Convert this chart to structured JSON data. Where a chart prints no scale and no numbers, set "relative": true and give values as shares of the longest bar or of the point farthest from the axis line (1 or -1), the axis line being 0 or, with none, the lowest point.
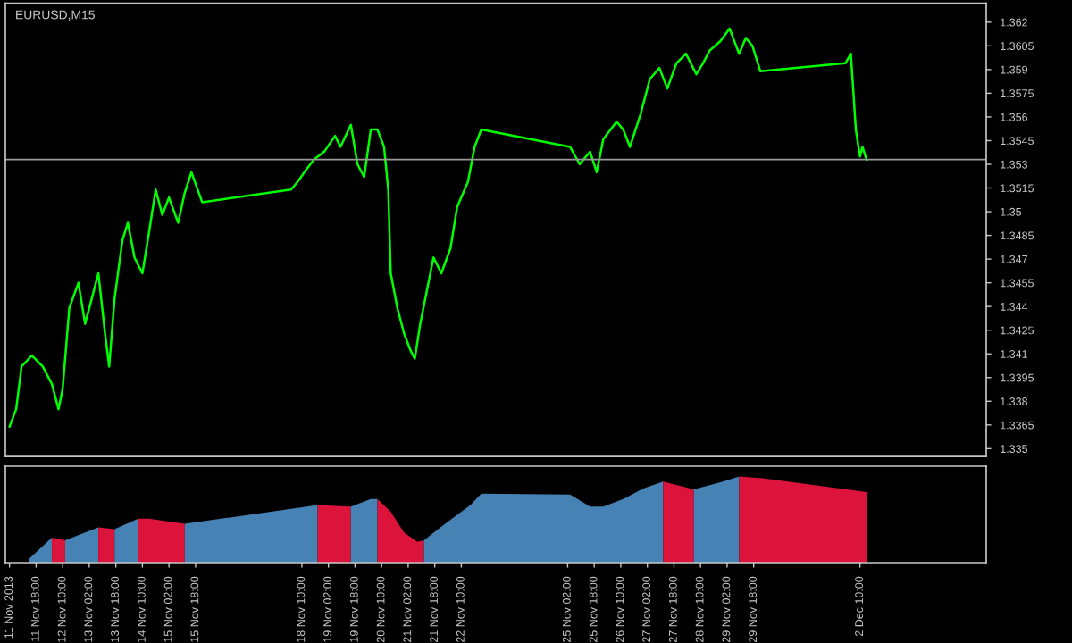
{
  "chart_data": [
    {
      "type": "line",
      "title": "EURUSD,M15",
      "x": [
        "2013-11-11T02:00",
        "2013-11-11T06:00",
        "2013-11-11T09:15",
        "2013-11-11T15:30",
        "2013-11-11T22:00",
        "2013-11-12T03:30",
        "2013-11-12T07:30",
        "2013-11-12T10:00",
        "2013-11-12T14:00",
        "2013-11-12T19:30",
        "2013-11-12T23:30",
        "2013-11-13T03:30",
        "2013-11-13T07:30",
        "2013-11-13T11:30",
        "2013-11-13T14:00",
        "2013-11-13T17:15",
        "2013-11-13T22:00",
        "2013-11-14T01:15",
        "2013-11-14T05:15",
        "2013-11-14T10:00",
        "2013-11-14T14:00",
        "2013-11-14T18:00",
        "2013-11-14T22:00",
        "2013-11-15T02:00",
        "2013-11-15T07:30",
        "2013-11-15T11:30",
        "2013-11-15T15:30",
        "2013-11-15T22:00",
        "2013-11-18T03:30",
        "2013-11-18T07:30",
        "2013-11-18T11:30",
        "2013-11-18T17:15",
        "2013-11-18T23:30",
        "2013-11-19T06:00",
        "2013-11-19T09:15",
        "2013-11-19T15:30",
        "2013-11-19T19:30",
        "2013-11-19T23:30",
        "2013-11-20T03:30",
        "2013-11-20T07:30",
        "2013-11-20T11:30",
        "2013-11-20T14:00",
        "2013-11-20T15:30",
        "2013-11-20T19:30",
        "2013-11-20T23:30",
        "2013-11-21T03:30",
        "2013-11-21T06:00",
        "2013-11-21T09:15",
        "2013-11-21T13:15",
        "2013-11-21T17:15",
        "2013-11-21T22:00",
        "2013-11-22T03:30",
        "2013-11-22T07:30",
        "2013-11-22T14:00",
        "2013-11-22T18:00",
        "2013-11-22T22:00",
        "2013-11-25T03:30",
        "2013-11-25T09:15",
        "2013-11-25T15:30",
        "2013-11-25T19:30",
        "2013-11-25T23:30",
        "2013-11-26T07:30",
        "2013-11-26T11:30",
        "2013-11-26T15:30",
        "2013-11-26T22:00",
        "2013-11-27T03:30",
        "2013-11-27T09:15",
        "2013-11-27T14:00",
        "2013-11-27T19:30",
        "2013-11-28T01:15",
        "2013-11-28T07:30",
        "2013-11-28T11:30",
        "2013-11-28T15:30",
        "2013-11-28T22:00",
        "2013-11-29T03:30",
        "2013-11-29T09:15",
        "2013-11-29T13:15",
        "2013-11-29T17:15",
        "2013-11-29T22:00",
        "2013-12-02T01:15",
        "2013-12-02T04:30",
        "2013-12-02T07:30",
        "2013-12-02T10:00",
        "2013-12-02T11:30",
        "2013-12-02T14:00"
      ],
      "series": [
        {
          "color": "#00ff00",
          "values": [
            1.3364,
            1.3375,
            1.3402,
            1.3409,
            1.3402,
            1.3391,
            1.3375,
            1.3388,
            1.3439,
            1.3455,
            1.3429,
            1.3445,
            1.3461,
            1.3423,
            1.3402,
            1.3445,
            1.3482,
            1.3493,
            1.3471,
            1.3461,
            1.3487,
            1.3514,
            1.3498,
            1.3509,
            1.3493,
            1.3512,
            1.3525,
            1.3506,
            1.3514,
            1.3519,
            1.3525,
            1.3533,
            1.3538,
            1.3548,
            1.3541,
            1.3555,
            1.353,
            1.3522,
            1.3552,
            1.3552,
            1.3541,
            1.3514,
            1.3461,
            1.3439,
            1.3423,
            1.3412,
            1.3407,
            1.3429,
            1.345,
            1.3471,
            1.3461,
            1.3477,
            1.3503,
            1.3519,
            1.3541,
            1.3552,
            1.3541,
            1.353,
            1.3538,
            1.3525,
            1.3546,
            1.3557,
            1.3552,
            1.3541,
            1.3562,
            1.3584,
            1.3591,
            1.3578,
            1.3594,
            1.36,
            1.3587,
            1.3594,
            1.3602,
            1.3608,
            1.3616,
            1.36,
            1.361,
            1.3605,
            1.3589,
            1.3594,
            1.36,
            1.3552,
            1.3535,
            1.3541,
            1.3533
          ]
        }
      ],
      "xlim": [
        "2013-11-10T23:30",
        "2013-12-05T14:00"
      ],
      "ylim": [
        1.3345,
        1.3632
      ],
      "yticks": [
        1.335,
        1.3365,
        1.338,
        1.3395,
        1.341,
        1.3425,
        1.344,
        1.3455,
        1.347,
        1.3485,
        1.35,
        1.3515,
        1.353,
        1.3545,
        1.356,
        1.3575,
        1.359,
        1.3605,
        1.362
      ],
      "ref_lines": [
        {
          "axis": "y",
          "value": 1.3533,
          "color": "#9a9a9a"
        }
      ],
      "tick_labels": "y"
    },
    {
      "type": "area",
      "relative": true,
      "series": [
        {
          "color": "#4682b4",
          "x": [
            "2013-11-11T14:00",
            "2013-11-12T03:30"
          ],
          "values": [
            0.05,
            0.29
          ]
        },
        {
          "color": "#dc143c",
          "x": [
            "2013-11-12T03:30",
            "2013-11-12T11:30"
          ],
          "values": [
            0.29,
            0.26
          ]
        },
        {
          "color": "#4682b4",
          "x": [
            "2013-11-12T11:30",
            "2013-11-13T07:30"
          ],
          "values": [
            0.26,
            0.41
          ]
        },
        {
          "color": "#dc143c",
          "x": [
            "2013-11-13T07:30",
            "2013-11-13T17:15"
          ],
          "values": [
            0.41,
            0.39
          ]
        },
        {
          "color": "#4682b4",
          "x": [
            "2013-11-13T17:15",
            "2013-11-14T07:30"
          ],
          "values": [
            0.39,
            0.51
          ]
        },
        {
          "color": "#dc143c",
          "x": [
            "2013-11-14T07:30",
            "2013-11-14T14:00",
            "2013-11-15T11:30"
          ],
          "values": [
            0.51,
            0.51,
            0.45
          ]
        },
        {
          "color": "#4682b4",
          "x": [
            "2013-11-15T11:30",
            "2013-11-18T19:30"
          ],
          "values": [
            0.45,
            0.67
          ]
        },
        {
          "color": "#dc143c",
          "x": [
            "2013-11-18T19:30",
            "2013-11-19T15:30"
          ],
          "values": [
            0.67,
            0.65
          ]
        },
        {
          "color": "#4682b4",
          "x": [
            "2013-11-19T15:30",
            "2013-11-20T03:30",
            "2013-11-20T07:30"
          ],
          "values": [
            0.65,
            0.74,
            0.74
          ]
        },
        {
          "color": "#dc143c",
          "x": [
            "2013-11-20T07:30",
            "2013-11-20T15:30",
            "2013-11-20T23:30",
            "2013-11-21T07:30",
            "2013-11-21T11:30"
          ],
          "values": [
            0.74,
            0.59,
            0.35,
            0.24,
            0.26
          ]
        },
        {
          "color": "#4682b4",
          "x": [
            "2013-11-21T11:30",
            "2013-11-21T23:30",
            "2013-11-22T15:30",
            "2013-11-22T22:00",
            "2013-11-25T03:30",
            "2013-11-25T15:30",
            "2013-11-25T23:30",
            "2013-11-26T11:30",
            "2013-11-26T23:30",
            "2013-11-27T11:30"
          ],
          "values": [
            0.26,
            0.44,
            0.67,
            0.8,
            0.79,
            0.65,
            0.65,
            0.74,
            0.86,
            0.94
          ]
        },
        {
          "color": "#dc143c",
          "x": [
            "2013-11-27T11:30",
            "2013-11-28T06:00"
          ],
          "values": [
            0.94,
            0.85
          ]
        },
        {
          "color": "#4682b4",
          "x": [
            "2013-11-28T06:00",
            "2013-11-28T23:30",
            "2013-11-29T09:15"
          ],
          "values": [
            0.85,
            0.94,
            1
          ]
        },
        {
          "color": "#dc143c",
          "x": [
            "2013-11-29T09:15",
            "2013-11-29T23:30",
            "2013-12-02T14:00"
          ],
          "values": [
            1,
            0.98,
            0.82
          ]
        }
      ],
      "xlim": [
        "2013-11-10T23:30",
        "2013-12-05T14:00"
      ],
      "xticks": [
        {
          "value": "2013-11-11T02:00",
          "label": "11 Nov 2013"
        },
        {
          "value": "2013-11-11T18:00",
          "label": "11 Nov 18:00"
        },
        {
          "value": "2013-11-12T10:00",
          "label": "12 Nov 10:00"
        },
        {
          "value": "2013-11-13T02:00",
          "label": "13 Nov 02:00"
        },
        {
          "value": "2013-11-13T18:00",
          "label": "13 Nov 18:00"
        },
        {
          "value": "2013-11-14T10:00",
          "label": "14 Nov 10:00"
        },
        {
          "value": "2013-11-15T02:00",
          "label": "15 Nov 02:00"
        },
        {
          "value": "2013-11-15T18:00",
          "label": "15 Nov 18:00"
        },
        {
          "value": "2013-11-18T10:00",
          "label": "18 Nov 10:00"
        },
        {
          "value": "2013-11-19T02:00",
          "label": "19 Nov 02:00"
        },
        {
          "value": "2013-11-19T18:00",
          "label": "19 Nov 18:00"
        },
        {
          "value": "2013-11-20T10:00",
          "label": "20 Nov 10:00"
        },
        {
          "value": "2013-11-21T02:00",
          "label": "21 Nov 02:00"
        },
        {
          "value": "2013-11-21T18:00",
          "label": "21 Nov 18:00"
        },
        {
          "value": "2013-11-22T10:00",
          "label": "22 Nov 10:00"
        },
        {
          "value": "2013-11-25T02:00",
          "label": "25 Nov 02:00"
        },
        {
          "value": "2013-11-25T18:00",
          "label": "25 Nov 18:00"
        },
        {
          "value": "2013-11-26T10:00",
          "label": "26 Nov 10:00"
        },
        {
          "value": "2013-11-27T02:00",
          "label": "27 Nov 02:00"
        },
        {
          "value": "2013-11-27T18:00",
          "label": "27 Nov 18:00"
        },
        {
          "value": "2013-11-28T10:00",
          "label": "28 Nov 10:00"
        },
        {
          "value": "2013-11-29T02:00",
          "label": "29 Nov 02:00"
        },
        {
          "value": "2013-11-29T18:00",
          "label": "29 Nov 18:00"
        },
        {
          "value": "2013-12-02T10:00",
          "label": "2 Dec 10:00"
        }
      ],
      "tick_labels": "x"
    }
  ]
}
